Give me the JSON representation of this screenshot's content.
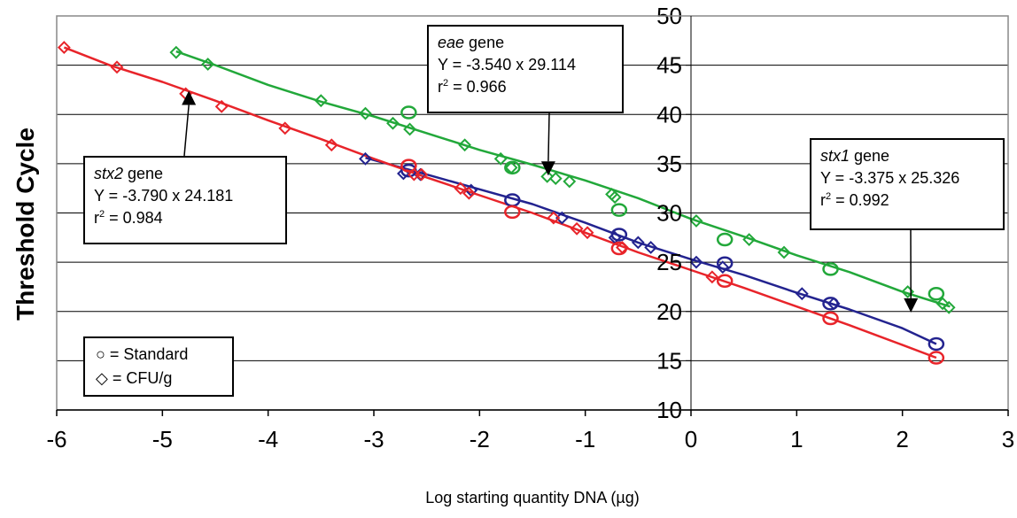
{
  "chart_data": {
    "type": "scatter",
    "title": "",
    "xlabel": "Log starting quantity DNA (µg)",
    "ylabel": "Threshold Cycle",
    "xlim": [
      -6,
      3
    ],
    "ylim": [
      10,
      50
    ],
    "xticks": [
      "-6",
      "-5",
      "-4",
      "-3",
      "-2",
      "-1",
      "0",
      "1",
      "2",
      "3"
    ],
    "yticks": [
      "10",
      "15",
      "20",
      "25",
      "30",
      "35",
      "40",
      "45",
      "50"
    ],
    "grid": "horizontal",
    "legend_position": "bottom-left",
    "legend": {
      "standard": "○ = Standard",
      "cfu": "◇ = CFU/g"
    },
    "series": [
      {
        "gene": "eae",
        "color": "#22a83a",
        "fit_x": [
          -4.87,
          -4.5,
          -4.0,
          -3.5,
          -3.0,
          -2.5,
          -2.0,
          -1.5,
          -1.0,
          -0.5,
          0.0,
          0.5,
          1.0,
          1.5,
          2.0,
          2.45
        ],
        "fit_y": [
          46.4,
          45.0,
          43.0,
          41.3,
          39.8,
          38.1,
          36.4,
          34.9,
          33.3,
          31.5,
          29.4,
          27.6,
          25.7,
          24.0,
          22.0,
          20.5
        ],
        "standard_x": [
          -2.67,
          -1.69,
          -0.68,
          0.32,
          1.32,
          2.32
        ],
        "standard_y": [
          40.2,
          34.6,
          30.3,
          27.3,
          24.3,
          21.8
        ],
        "cfu_x": [
          -4.87,
          -4.57,
          -3.5,
          -3.08,
          -2.82,
          -2.66,
          -2.14,
          -1.8,
          -1.7,
          -1.36,
          -1.28,
          -1.15,
          -0.75,
          -0.72,
          0.05,
          0.55,
          0.88,
          2.05,
          2.38,
          2.44
        ],
        "cfu_y": [
          46.3,
          45.1,
          41.4,
          40.1,
          39.1,
          38.5,
          36.9,
          35.5,
          34.6,
          33.7,
          33.5,
          33.2,
          31.9,
          31.6,
          29.2,
          27.3,
          26.0,
          22.0,
          20.8,
          20.4
        ]
      },
      {
        "gene": "stx1",
        "color": "#23238f",
        "fit_x": [
          -3.08,
          -2.5,
          -2.0,
          -1.5,
          -1.0,
          -0.5,
          0.0,
          0.5,
          1.0,
          1.5,
          2.0,
          2.32
        ],
        "fit_y": [
          35.6,
          33.9,
          32.4,
          30.9,
          29.0,
          27.0,
          25.3,
          23.7,
          21.9,
          20.2,
          18.3,
          16.7
        ],
        "standard_x": [
          -2.67,
          -1.69,
          -0.68,
          0.32,
          1.32,
          2.32
        ],
        "standard_y": [
          34.3,
          31.3,
          27.8,
          24.9,
          20.8,
          16.7
        ],
        "cfu_x": [
          -3.08,
          -2.72,
          -2.56,
          -2.08,
          -1.22,
          -0.72,
          -0.5,
          -0.38,
          0.05,
          0.3,
          1.05,
          1.35
        ],
        "cfu_y": [
          35.5,
          34.0,
          33.9,
          32.3,
          29.5,
          27.5,
          27.0,
          26.5,
          25.0,
          24.5,
          21.8,
          20.8
        ]
      },
      {
        "gene": "stx2",
        "color": "#e8242a",
        "fit_x": [
          -5.93,
          -5.5,
          -5.0,
          -4.5,
          -4.0,
          -3.5,
          -3.0,
          -2.5,
          -2.0,
          -1.5,
          -1.0,
          -0.5,
          0.0,
          0.5,
          1.0,
          1.5,
          2.0,
          2.32
        ],
        "fit_y": [
          46.8,
          45.0,
          43.3,
          41.4,
          39.4,
          37.5,
          35.5,
          33.6,
          31.8,
          30.0,
          28.0,
          26.0,
          24.2,
          22.4,
          20.5,
          18.6,
          16.6,
          15.3
        ],
        "standard_x": [
          -2.67,
          -1.69,
          -0.68,
          0.32,
          1.32,
          2.32
        ],
        "standard_y": [
          34.8,
          30.1,
          26.4,
          23.1,
          19.3,
          15.3
        ],
        "cfu_x": [
          -5.93,
          -5.43,
          -4.78,
          -4.44,
          -3.84,
          -3.4,
          -2.62,
          -2.55,
          -2.18,
          -2.1,
          -1.3,
          -1.08,
          -0.98,
          -0.65,
          0.2
        ],
        "cfu_y": [
          46.8,
          44.8,
          42.1,
          40.8,
          38.6,
          36.9,
          33.9,
          33.9,
          32.5,
          32.0,
          29.5,
          28.4,
          28.0,
          26.5,
          23.5
        ]
      }
    ],
    "annotations": [
      {
        "gene": "eae",
        "gene_suffix": " gene",
        "equation": "Y = -3.540 x 29.114",
        "r2_prefix": "r",
        "r2_sup": "2",
        "r2_value": " = 0.966",
        "arrow_to": [
          -1.35,
          33.8
        ]
      },
      {
        "gene": "stx2",
        "gene_suffix": " gene",
        "equation": "Y = -3.790 x 24.181",
        "r2_prefix": "r",
        "r2_sup": "2",
        "r2_value": " = 0.984",
        "arrow_to": [
          -4.75,
          42.4
        ]
      },
      {
        "gene": "stx1",
        "gene_suffix": " gene",
        "equation": "Y = -3.375 x 25.326",
        "r2_prefix": "r",
        "r2_sup": "2",
        "r2_value": " = 0.992",
        "arrow_to": [
          2.08,
          19.9
        ]
      }
    ]
  }
}
